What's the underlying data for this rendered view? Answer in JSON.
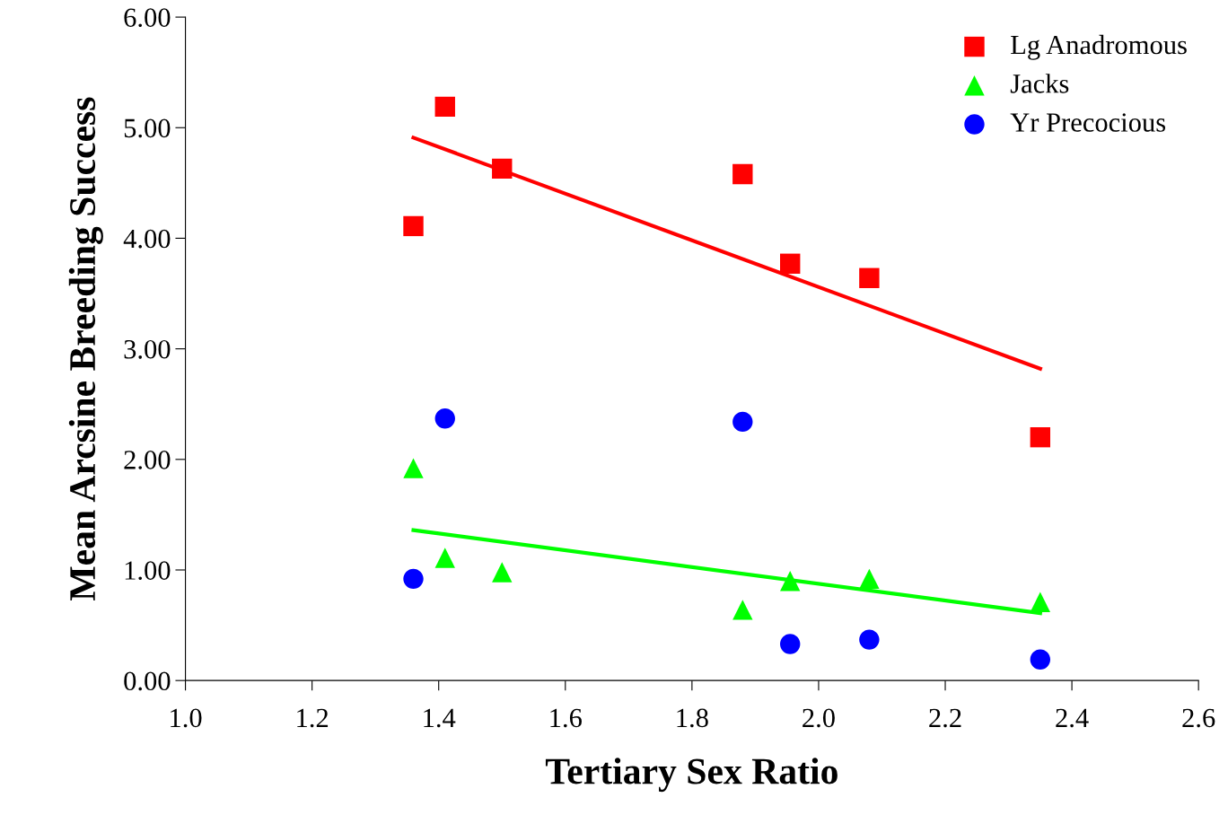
{
  "chart_data": {
    "type": "scatter",
    "xlabel": "Tertiary Sex Ratio",
    "ylabel": "Mean Arcsine Breeding Success",
    "xlim": [
      1.0,
      2.6
    ],
    "ylim": [
      0,
      6
    ],
    "xticks": [
      {
        "value": 1.0,
        "label": "1.0"
      },
      1.2,
      1.4,
      1.6,
      1.8,
      {
        "value": 2.0,
        "label": "2.0"
      },
      2.2,
      2.4,
      2.6
    ],
    "yticks": [
      {
        "value": 0,
        "label": "0.00"
      },
      {
        "value": 1,
        "label": "1.00"
      },
      {
        "value": 2,
        "label": "2.00"
      },
      {
        "value": 3,
        "label": "3.00"
      },
      {
        "value": 4,
        "label": "4.00"
      },
      {
        "value": 5,
        "label": "5.00"
      },
      {
        "value": 6,
        "label": "6.00"
      }
    ],
    "grid": false,
    "legend": "top right",
    "series": [
      {
        "name": "Lg Anadromous",
        "color": "#ff0000",
        "marker": "square",
        "x": [
          1.36,
          1.41,
          1.5,
          1.88,
          1.955,
          2.08,
          2.35
        ],
        "values": [
          4.11,
          5.19,
          4.63,
          4.58,
          3.77,
          3.64,
          2.2
        ]
      },
      {
        "name": "Jacks",
        "color": "#00ff00",
        "marker": "triangle",
        "x": [
          1.36,
          1.41,
          1.5,
          1.88,
          1.955,
          2.08,
          2.35
        ],
        "values": [
          1.92,
          1.11,
          0.98,
          0.64,
          0.9,
          0.92,
          0.71
        ]
      },
      {
        "name": "Yr Precocious",
        "color": "#0000ff",
        "marker": "circle",
        "x": [
          1.36,
          1.41,
          1.88,
          1.955,
          2.08,
          2.35
        ],
        "values": [
          0.92,
          2.37,
          2.34,
          0.33,
          0.37,
          0.19
        ]
      },
      {
        "type": "line",
        "color": "#ff0000",
        "x": [
          1.36,
          2.35
        ],
        "values": [
          4.91,
          2.82
        ]
      },
      {
        "type": "line",
        "color": "#00ff00",
        "x": [
          1.36,
          2.35
        ],
        "values": [
          1.36,
          0.61
        ]
      }
    ]
  }
}
